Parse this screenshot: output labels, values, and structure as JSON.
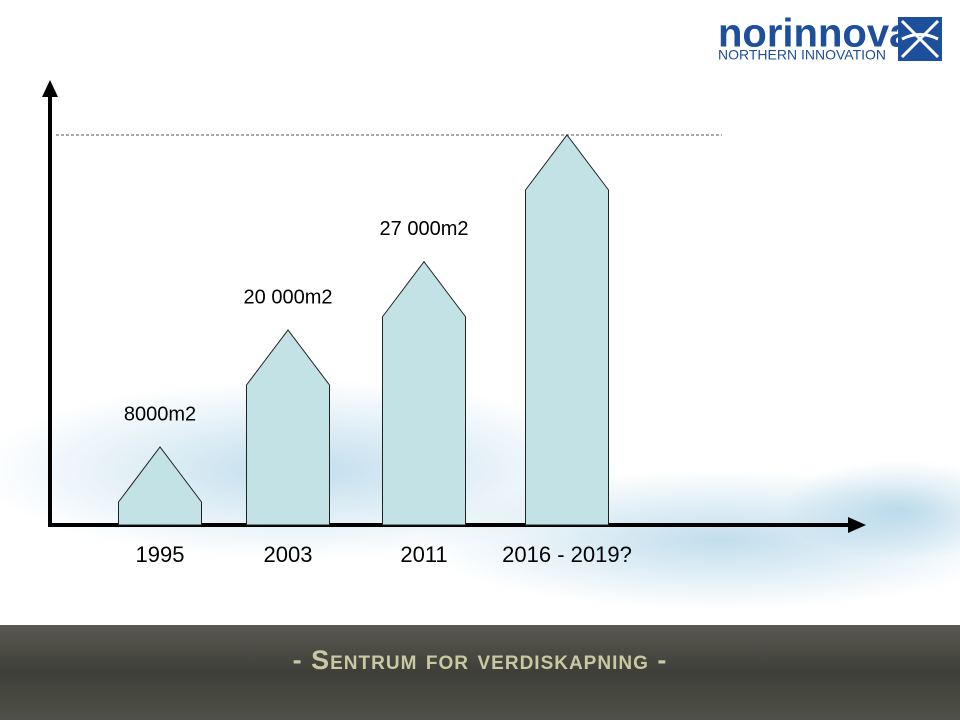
{
  "chart_data": {
    "type": "bar",
    "categories": [
      "1995",
      "2003",
      "2011",
      "2016 - 2019?"
    ],
    "values": [
      8000,
      20000,
      27000,
      40000
    ],
    "value_labels": [
      "8000m2",
      "20 000m2",
      "27 000m2",
      null
    ],
    "color": "#c2e2e6"
  },
  "logo": {
    "name": "norinnova",
    "tagline": "NORTHERN INNOVATION"
  },
  "footer": "- Sentrum for verdiskapning -"
}
